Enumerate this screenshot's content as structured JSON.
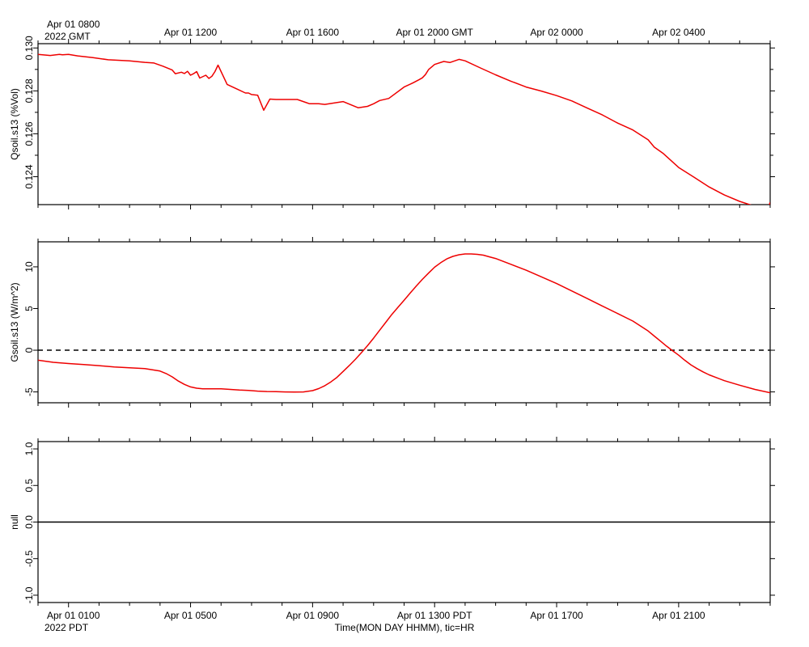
{
  "top_axis": {
    "corner_label": [
      "Apr 01 0800",
      "2022 GMT"
    ],
    "tick_labels": [
      "Apr 01 1200",
      "Apr 01 1600",
      "Apr 01 2000 GMT",
      "Apr 02 0000",
      "Apr 02 0400"
    ]
  },
  "bottom_axis": {
    "corner_label": [
      "Apr 01 0100",
      "2022 PDT"
    ],
    "tick_labels": [
      "Apr 01 0500",
      "Apr 01 0900",
      "Apr 01 1300 PDT",
      "Apr 01 1700",
      "Apr 01 2100"
    ],
    "xlabel": "Time(MON DAY HHMM), tic=HR"
  },
  "chart_data": [
    {
      "type": "line",
      "ylabel": "Qsoil.s13 (%Vol)",
      "x_unit": "hours since Apr 01 0000 PDT",
      "xlim": [
        0.0,
        24.0
      ],
      "ylim": [
        0.1227,
        0.1302
      ],
      "yticks": [
        0.124,
        0.126,
        0.128,
        0.13
      ],
      "yticklabels": [
        "0.124",
        "0.126",
        "0.128",
        "0.130"
      ],
      "color": "#ee0000",
      "series": [
        {
          "x": [
            0.0,
            0.4,
            0.7,
            0.8,
            1.0,
            1.3,
            1.8,
            2.3,
            3.0,
            3.5,
            3.8,
            4.1,
            4.4,
            4.5,
            4.7,
            4.8,
            4.9,
            5.0,
            5.1,
            5.2,
            5.3,
            5.5,
            5.6,
            5.7,
            5.8,
            5.9,
            6.2,
            6.5,
            6.8,
            6.9,
            7.0,
            7.2,
            7.4,
            7.6,
            7.8,
            8.0,
            8.2,
            8.5,
            8.9,
            9.0,
            9.2,
            9.4,
            10.0,
            10.5,
            10.8,
            11.0,
            11.2,
            11.5,
            12.0,
            12.3,
            12.5,
            12.6,
            12.7,
            12.8,
            13.0,
            13.3,
            13.5,
            13.8,
            14.0,
            14.5,
            15.0,
            15.5,
            16.0,
            16.5,
            17.0,
            17.5,
            18.0,
            18.5,
            19.0,
            19.5,
            20.0,
            20.2,
            20.5,
            21.0,
            21.5,
            22.0,
            22.5,
            23.0,
            23.5,
            23.9,
            24.0
          ],
          "values": [
            0.1297,
            0.12965,
            0.1297,
            0.12968,
            0.1297,
            0.12963,
            0.12955,
            0.12945,
            0.1294,
            0.12933,
            0.1293,
            0.12915,
            0.12897,
            0.1288,
            0.12887,
            0.12881,
            0.12891,
            0.12873,
            0.1288,
            0.1289,
            0.1286,
            0.12873,
            0.12858,
            0.12868,
            0.1289,
            0.1292,
            0.1283,
            0.1281,
            0.1279,
            0.1279,
            0.12783,
            0.1278,
            0.1271,
            0.12762,
            0.1276,
            0.1276,
            0.1276,
            0.1276,
            0.1274,
            0.1274,
            0.1274,
            0.12737,
            0.1275,
            0.12721,
            0.12728,
            0.1274,
            0.12755,
            0.12765,
            0.12818,
            0.12838,
            0.12853,
            0.12861,
            0.12876,
            0.12899,
            0.12923,
            0.12937,
            0.12932,
            0.12947,
            0.1294,
            0.12907,
            0.12875,
            0.12845,
            0.12818,
            0.12799,
            0.12778,
            0.12753,
            0.1272,
            0.12688,
            0.1265,
            0.12618,
            0.12572,
            0.12538,
            0.12508,
            0.12443,
            0.12398,
            0.12352,
            0.12315,
            0.12285,
            0.12262,
            0.12243,
            0.1228
          ]
        }
      ]
    },
    {
      "type": "line",
      "ylabel": "Gsoil.s13 (W/m^2)",
      "x_unit": "hours since Apr 01 0000 PDT",
      "xlim": [
        0.0,
        24.0
      ],
      "ylim": [
        -6.3,
        13.0
      ],
      "yticks": [
        -5,
        0,
        5,
        10
      ],
      "yticklabels": [
        "-5",
        "0",
        "5",
        "10"
      ],
      "reference_line": {
        "y": 0,
        "style": "dashed"
      },
      "color": "#ee0000",
      "series": [
        {
          "x": [
            0.0,
            0.5,
            1.0,
            1.5,
            2.0,
            2.5,
            3.0,
            3.5,
            4.0,
            4.2,
            4.4,
            4.6,
            4.8,
            5.0,
            5.2,
            5.4,
            5.6,
            5.8,
            6.0,
            6.3,
            6.6,
            6.9,
            7.2,
            7.5,
            7.8,
            8.1,
            8.4,
            8.7,
            9.0,
            9.2,
            9.4,
            9.6,
            9.8,
            10.0,
            10.2,
            10.4,
            10.6,
            10.8,
            11.0,
            11.2,
            11.4,
            11.6,
            11.8,
            12.0,
            12.2,
            12.4,
            12.6,
            12.8,
            13.0,
            13.2,
            13.4,
            13.6,
            13.8,
            14.0,
            14.2,
            14.4,
            14.6,
            14.8,
            15.0,
            15.5,
            16.0,
            16.5,
            17.0,
            17.5,
            18.0,
            18.5,
            19.0,
            19.5,
            20.0,
            20.2,
            20.4,
            20.6,
            20.8,
            21.0,
            21.2,
            21.4,
            21.6,
            21.8,
            22.0,
            22.5,
            23.0,
            23.5,
            24.0
          ],
          "values": [
            -1.2,
            -1.45,
            -1.6,
            -1.72,
            -1.85,
            -2.0,
            -2.1,
            -2.2,
            -2.5,
            -2.8,
            -3.2,
            -3.7,
            -4.1,
            -4.4,
            -4.55,
            -4.62,
            -4.62,
            -4.62,
            -4.62,
            -4.7,
            -4.78,
            -4.82,
            -4.9,
            -4.95,
            -4.97,
            -5.0,
            -5.02,
            -5.0,
            -4.85,
            -4.6,
            -4.25,
            -3.8,
            -3.25,
            -2.55,
            -1.85,
            -1.1,
            -0.3,
            0.55,
            1.45,
            2.4,
            3.35,
            4.3,
            5.15,
            6.0,
            6.85,
            7.7,
            8.5,
            9.25,
            9.95,
            10.5,
            10.95,
            11.25,
            11.45,
            11.55,
            11.55,
            11.5,
            11.4,
            11.2,
            11.0,
            10.3,
            9.6,
            8.8,
            8.0,
            7.1,
            6.2,
            5.3,
            4.4,
            3.5,
            2.3,
            1.7,
            1.1,
            0.5,
            -0.05,
            -0.6,
            -1.2,
            -1.75,
            -2.2,
            -2.6,
            -2.95,
            -3.65,
            -4.2,
            -4.7,
            -5.1
          ]
        }
      ]
    },
    {
      "type": "line",
      "ylabel": "null",
      "x_unit": "hours since Apr 01 0000 PDT",
      "xlim": [
        0.0,
        24.0
      ],
      "ylim": [
        -1.1,
        1.1
      ],
      "yticks": [
        -1,
        -0.5,
        0,
        0.5,
        1
      ],
      "yticklabels": [
        "-1.0",
        "-0.5",
        "0.0",
        "0.5",
        "1.0"
      ],
      "color": "#000000",
      "series": [
        {
          "x": [
            0.0,
            24.0
          ],
          "values": [
            0.0,
            0.0
          ]
        }
      ]
    }
  ]
}
